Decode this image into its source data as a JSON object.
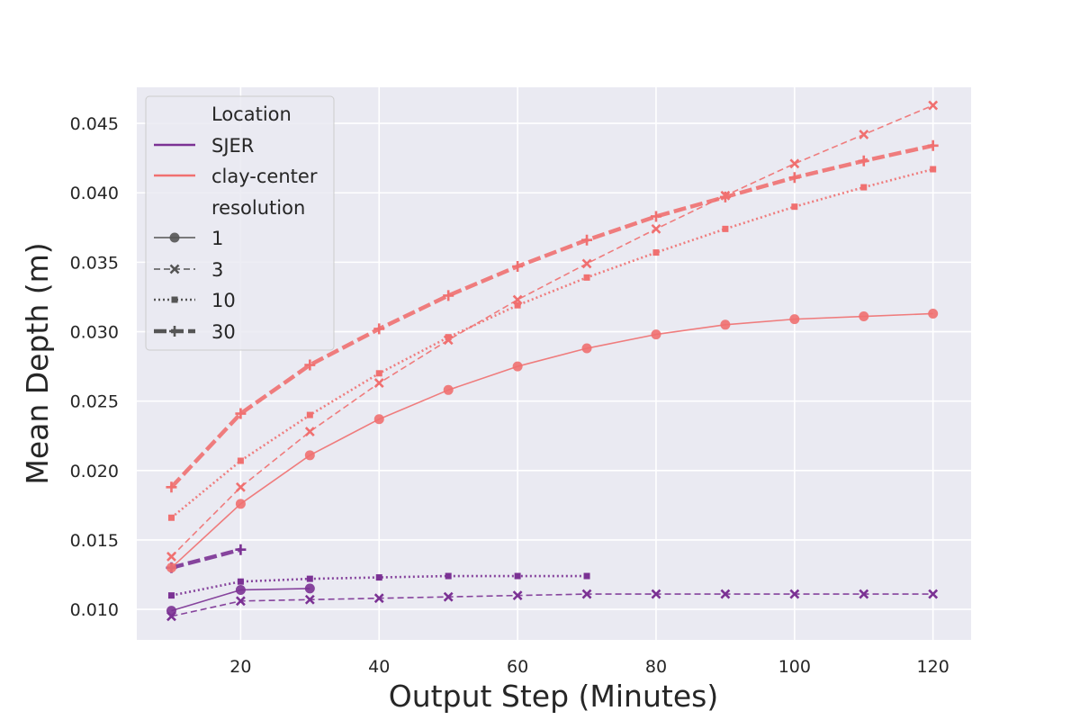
{
  "chart_data": {
    "type": "line",
    "xlabel": "Output Step (Minutes)",
    "ylabel": "Mean Depth (m)",
    "xlim": [
      5,
      125.5
    ],
    "ylim": [
      0.0078,
      0.0476
    ],
    "xticks": [
      20,
      40,
      60,
      80,
      100,
      120
    ],
    "yticks": [
      0.01,
      0.015,
      0.02,
      0.025,
      0.03,
      0.035,
      0.04,
      0.045
    ],
    "ytick_labels": [
      "0.010",
      "0.015",
      "0.020",
      "0.025",
      "0.030",
      "0.035",
      "0.040",
      "0.045"
    ],
    "grid": true,
    "legend_position": "top-left",
    "colors": {
      "SJER": "#7b3294",
      "clay-center": "#f07070",
      "legend_gray": "#555555",
      "background": "#eaeaf2"
    },
    "legend": {
      "hue_title": "Location",
      "hue_entries": [
        "SJER",
        "clay-center"
      ],
      "style_title": "resolution",
      "style_entries": [
        "1",
        "3",
        "10",
        "30"
      ]
    },
    "series": [
      {
        "location": "SJER",
        "resolution": "1",
        "x": [
          10,
          20,
          30
        ],
        "y": [
          0.0099,
          0.0114,
          0.0115
        ]
      },
      {
        "location": "SJER",
        "resolution": "3",
        "x": [
          10,
          20,
          30,
          40,
          50,
          60,
          70,
          80,
          90,
          100,
          110,
          120
        ],
        "y": [
          0.0095,
          0.0106,
          0.0107,
          0.0108,
          0.0109,
          0.011,
          0.0111,
          0.0111,
          0.0111,
          0.0111,
          0.0111,
          0.0111
        ]
      },
      {
        "location": "SJER",
        "resolution": "10",
        "x": [
          10,
          20,
          30,
          40,
          50,
          60,
          70
        ],
        "y": [
          0.011,
          0.012,
          0.0122,
          0.0123,
          0.0124,
          0.0124,
          0.0124
        ]
      },
      {
        "location": "SJER",
        "resolution": "30",
        "x": [
          10,
          20
        ],
        "y": [
          0.013,
          0.0143
        ]
      },
      {
        "location": "clay-center",
        "resolution": "1",
        "x": [
          10,
          20,
          30,
          40,
          50,
          60,
          70,
          80,
          90,
          100,
          110,
          120
        ],
        "y": [
          0.013,
          0.0176,
          0.0211,
          0.0237,
          0.0258,
          0.0275,
          0.0288,
          0.0298,
          0.0305,
          0.0309,
          0.0311,
          0.0313
        ]
      },
      {
        "location": "clay-center",
        "resolution": "3",
        "x": [
          10,
          20,
          30,
          40,
          50,
          60,
          70,
          80,
          90,
          100,
          110,
          120
        ],
        "y": [
          0.0138,
          0.0188,
          0.0228,
          0.0263,
          0.0294,
          0.0323,
          0.0349,
          0.0374,
          0.0398,
          0.0421,
          0.0442,
          0.0463
        ]
      },
      {
        "location": "clay-center",
        "resolution": "10",
        "x": [
          10,
          20,
          30,
          40,
          50,
          60,
          70,
          80,
          90,
          100,
          110,
          120
        ],
        "y": [
          0.0166,
          0.0207,
          0.024,
          0.027,
          0.0296,
          0.0319,
          0.0339,
          0.0357,
          0.0374,
          0.039,
          0.0404,
          0.0417
        ]
      },
      {
        "location": "clay-center",
        "resolution": "30",
        "x": [
          10,
          20,
          30,
          40,
          50,
          60,
          70,
          80,
          90,
          100,
          110,
          120
        ],
        "y": [
          0.0188,
          0.0241,
          0.0276,
          0.0302,
          0.0326,
          0.0347,
          0.0366,
          0.0383,
          0.0397,
          0.0411,
          0.0423,
          0.0434
        ]
      }
    ]
  }
}
